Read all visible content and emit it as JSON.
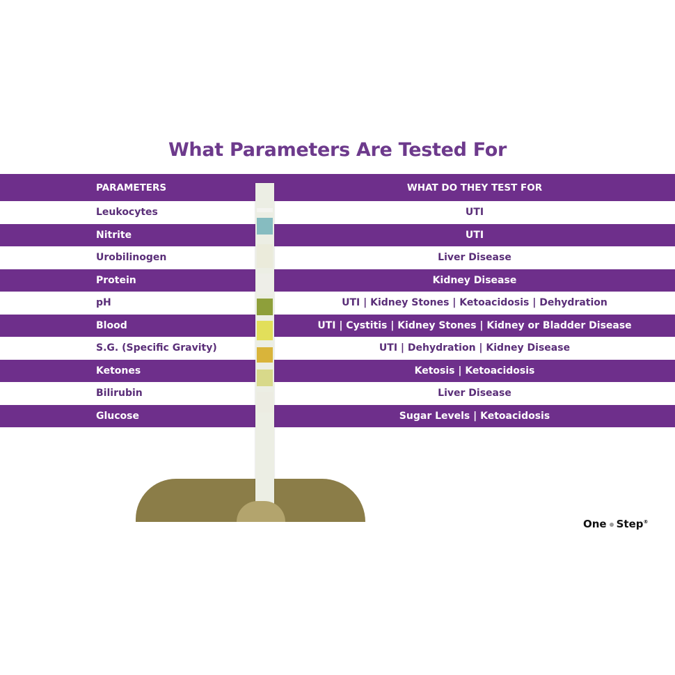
{
  "title": "What Parameters Are Tested For",
  "table": {
    "headers": [
      "PARAMETERS",
      "WHAT DO THEY TEST FOR"
    ],
    "rows": [
      {
        "parameter": "Leukocytes",
        "tests": "UTI"
      },
      {
        "parameter": "Nitrite",
        "tests": "UTI"
      },
      {
        "parameter": "Urobilinogen",
        "tests": "Liver Disease"
      },
      {
        "parameter": "Protein",
        "tests": "Kidney Disease"
      },
      {
        "parameter": "pH",
        "tests": "UTI | Kidney Stones | Ketoacidosis | Dehydration"
      },
      {
        "parameter": "Blood",
        "tests": "UTI | Cystitis | Kidney Stones | Kidney or Bladder Disease"
      },
      {
        "parameter": "S.G. (Specific Gravity)",
        "tests": "UTI | Dehydration | Kidney Disease"
      },
      {
        "parameter": "Ketones",
        "tests": "Ketosis | Ketoacidosis"
      },
      {
        "parameter": "Bilirubin",
        "tests": "Liver Disease"
      },
      {
        "parameter": "Glucose",
        "tests": "Sugar Levels | Ketoacidosis"
      }
    ]
  },
  "colors": {
    "purple": "#6e2f8b",
    "title": "#6d3a8c"
  },
  "logo": {
    "text": "One",
    "text2": "Step",
    "mark": "®"
  }
}
